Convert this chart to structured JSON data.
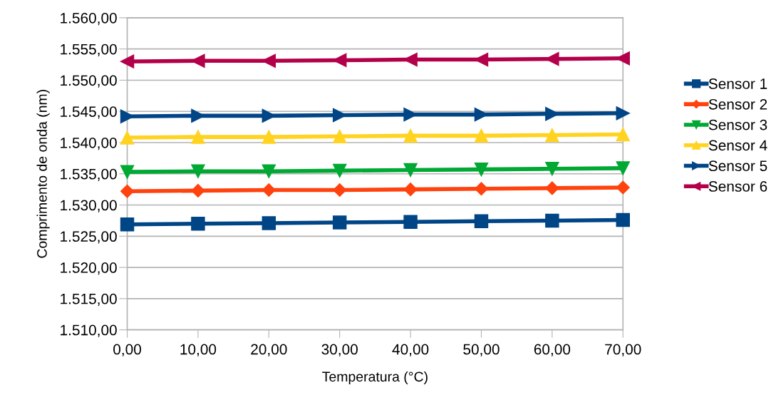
{
  "chart_data": {
    "type": "line",
    "xlabel": "Temperatura (°C)",
    "ylabel": "Comprimento de onda (nm)",
    "x": [
      0,
      10,
      20,
      30,
      40,
      50,
      60,
      70
    ],
    "xlim": [
      0,
      70
    ],
    "xticks": [
      {
        "value": 0,
        "label": "0,00"
      },
      {
        "value": 10,
        "label": "10,00"
      },
      {
        "value": 20,
        "label": "20,00"
      },
      {
        "value": 30,
        "label": "30,00"
      },
      {
        "value": 40,
        "label": "40,00"
      },
      {
        "value": 50,
        "label": "50,00"
      },
      {
        "value": 60,
        "label": "60,00"
      },
      {
        "value": 70,
        "label": "70,00"
      }
    ],
    "ylim": [
      1510,
      1560
    ],
    "yticks": [
      {
        "value": 1510,
        "label": "1.510,00"
      },
      {
        "value": 1515,
        "label": "1.515,00"
      },
      {
        "value": 1520,
        "label": "1.520,00"
      },
      {
        "value": 1525,
        "label": "1.525,00"
      },
      {
        "value": 1530,
        "label": "1.530,00"
      },
      {
        "value": 1535,
        "label": "1.535,00"
      },
      {
        "value": 1540,
        "label": "1.540,00"
      },
      {
        "value": 1545,
        "label": "1.545,00"
      },
      {
        "value": 1550,
        "label": "1.550,00"
      },
      {
        "value": 1555,
        "label": "1.555,00"
      },
      {
        "value": 1560,
        "label": "1.560,00"
      }
    ],
    "grid": "y",
    "legend": "right",
    "series": [
      {
        "name": "Sensor 1",
        "color": "#004586",
        "marker": "square",
        "values": [
          1526.9,
          1527.0,
          1527.1,
          1527.2,
          1527.3,
          1527.4,
          1527.5,
          1527.6
        ]
      },
      {
        "name": "Sensor 2",
        "color": "#ff420e",
        "marker": "diamond",
        "values": [
          1532.2,
          1532.3,
          1532.4,
          1532.4,
          1532.5,
          1532.6,
          1532.7,
          1532.8
        ]
      },
      {
        "name": "Sensor 3",
        "color": "#00a933",
        "marker": "triangle_down",
        "values": [
          1535.3,
          1535.4,
          1535.4,
          1535.5,
          1535.6,
          1535.7,
          1535.8,
          1535.9
        ]
      },
      {
        "name": "Sensor 4",
        "color": "#ffd320",
        "marker": "triangle",
        "values": [
          1540.8,
          1540.9,
          1540.9,
          1541.0,
          1541.1,
          1541.1,
          1541.2,
          1541.3
        ]
      },
      {
        "name": "Sensor 5",
        "color": "#004586",
        "marker": "triangle_right",
        "values": [
          1544.2,
          1544.3,
          1544.3,
          1544.4,
          1544.5,
          1544.5,
          1544.6,
          1544.7
        ]
      },
      {
        "name": "Sensor 6",
        "color": "#b3004a",
        "marker": "triangle_left",
        "values": [
          1553.0,
          1553.1,
          1553.1,
          1553.2,
          1553.3,
          1553.3,
          1553.4,
          1553.5
        ]
      }
    ]
  }
}
